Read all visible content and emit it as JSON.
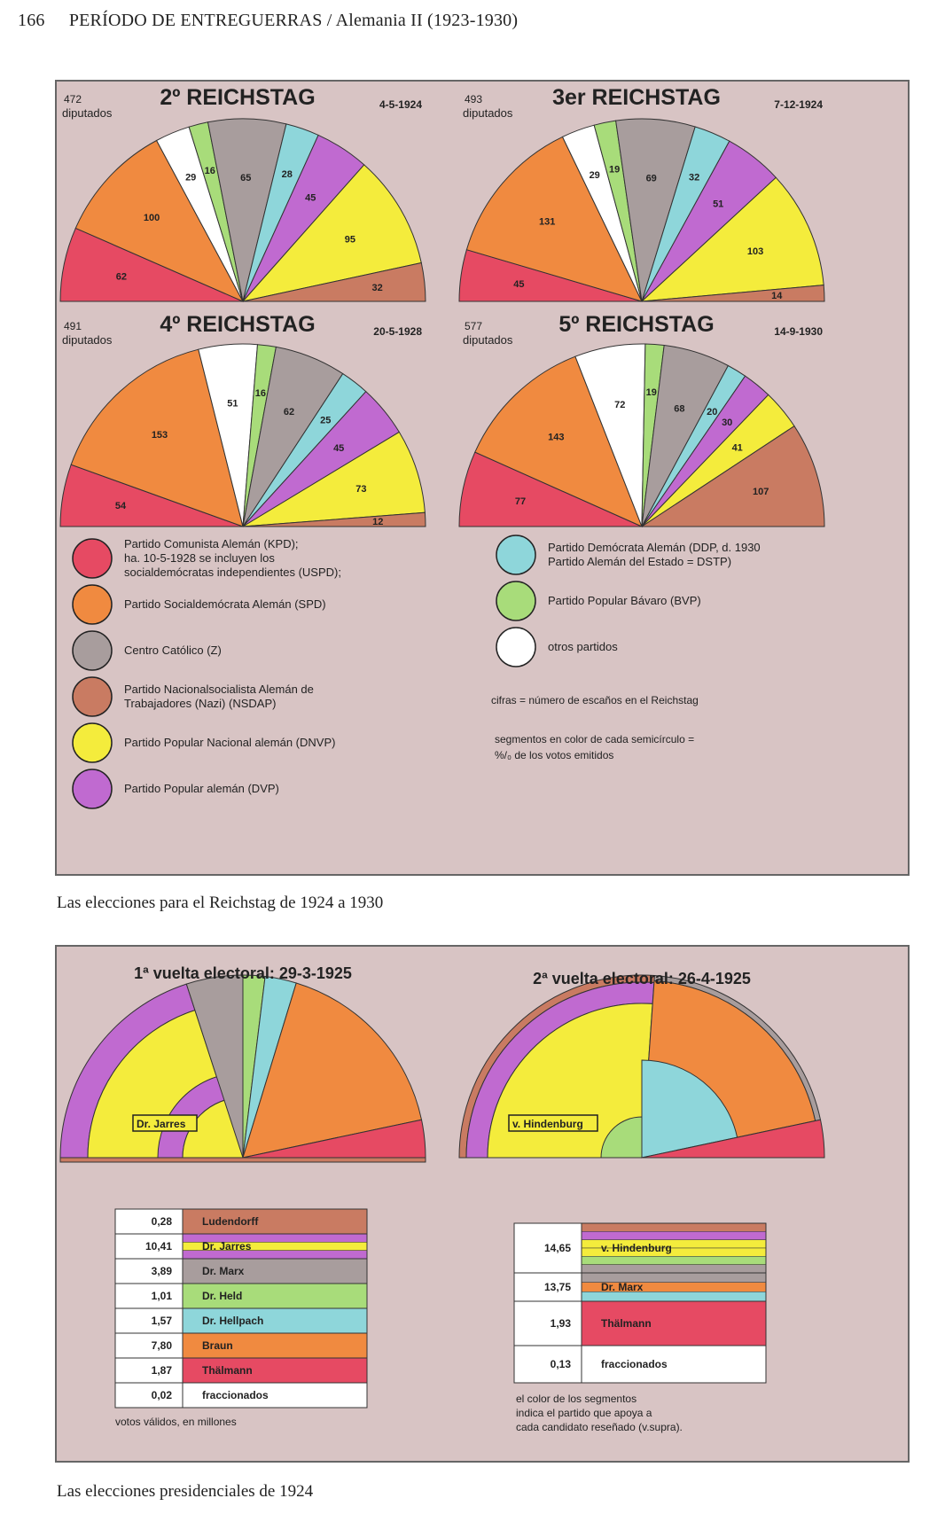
{
  "header": {
    "page_number": "166",
    "title": "PERÍODO DE ENTREGUERRAS / Alemania II (1923-1930)"
  },
  "colors": {
    "KPD": "#e64a63",
    "SPD": "#f08a40",
    "Z": "#a89d9d",
    "NSDAP": "#c97b62",
    "DNVP": "#f4ec3c",
    "DVP": "#c06ad0",
    "DDP": "#8ed6da",
    "BVP": "#a8dc7a",
    "otros": "#ffffff",
    "panel_bg": "#d8c4c4"
  },
  "reichstag": {
    "caption": "Las elecciones para el Reichstag de 1924 a 1930",
    "charts": [
      {
        "title": "2º REICHSTAG",
        "date": "4-5-1924",
        "seats": "472",
        "seats_label": "diputados",
        "segments": [
          {
            "party": "KPD",
            "value": 62
          },
          {
            "party": "SPD",
            "value": 100
          },
          {
            "party": "otros",
            "value": 29
          },
          {
            "party": "BVP",
            "value": 16
          },
          {
            "party": "Z",
            "value": 65
          },
          {
            "party": "DDP",
            "value": 28
          },
          {
            "party": "DVP",
            "value": 45
          },
          {
            "party": "DNVP",
            "value": 95
          },
          {
            "party": "NSDAP",
            "value": 32
          }
        ]
      },
      {
        "title": "3er REICHSTAG",
        "date": "7-12-1924",
        "seats": "493",
        "seats_label": "diputados",
        "segments": [
          {
            "party": "KPD",
            "value": 45
          },
          {
            "party": "SPD",
            "value": 131
          },
          {
            "party": "otros",
            "value": 29
          },
          {
            "party": "BVP",
            "value": 19
          },
          {
            "party": "Z",
            "value": 69
          },
          {
            "party": "DDP",
            "value": 32
          },
          {
            "party": "DVP",
            "value": 51
          },
          {
            "party": "DNVP",
            "value": 103
          },
          {
            "party": "NSDAP",
            "value": 14
          }
        ]
      },
      {
        "title": "4º REICHSTAG",
        "date": "20-5-1928",
        "seats": "491",
        "seats_label": "diputados",
        "segments": [
          {
            "party": "KPD",
            "value": 54
          },
          {
            "party": "SPD",
            "value": 153
          },
          {
            "party": "otros",
            "value": 51
          },
          {
            "party": "BVP",
            "value": 16
          },
          {
            "party": "Z",
            "value": 62
          },
          {
            "party": "DDP",
            "value": 25
          },
          {
            "party": "DVP",
            "value": 45
          },
          {
            "party": "DNVP",
            "value": 73
          },
          {
            "party": "NSDAP",
            "value": 12
          }
        ]
      },
      {
        "title": "5º REICHSTAG",
        "date": "14-9-1930",
        "seats": "577",
        "seats_label": "diputados",
        "segments": [
          {
            "party": "KPD",
            "value": 77
          },
          {
            "party": "SPD",
            "value": 143
          },
          {
            "party": "otros",
            "value": 72
          },
          {
            "party": "BVP",
            "value": 19
          },
          {
            "party": "Z",
            "value": 68
          },
          {
            "party": "DDP",
            "value": 20
          },
          {
            "party": "DVP",
            "value": 30
          },
          {
            "party": "DNVP",
            "value": 41
          },
          {
            "party": "NSDAP",
            "value": 107
          }
        ]
      }
    ],
    "legend_left": [
      {
        "party": "KPD",
        "lines": [
          "Partido Comunista Alemán (KPD);",
          "ha. 10-5-1928 se incluyen los",
          "socialdemócratas independientes (USPD);"
        ]
      },
      {
        "party": "SPD",
        "lines": [
          "Partido Socialdemócrata Alemán (SPD)"
        ]
      },
      {
        "party": "Z",
        "lines": [
          "Centro Católico (Z)"
        ]
      },
      {
        "party": "NSDAP",
        "lines": [
          "Partido Nacionalsocialista Alemán de",
          "Trabajadores (Nazi) (NSDAP)"
        ]
      },
      {
        "party": "DNVP",
        "lines": [
          "Partido Popular Nacional alemán (DNVP)"
        ]
      },
      {
        "party": "DVP",
        "lines": [
          "Partido Popular alemán (DVP)"
        ]
      }
    ],
    "legend_right": [
      {
        "party": "DDP",
        "lines": [
          "Partido Demócrata Alemán (DDP, d. 1930",
          "Partido Alemán del Estado = DSTP)"
        ]
      },
      {
        "party": "BVP",
        "lines": [
          "Partido Popular Bávaro (BVP)"
        ]
      },
      {
        "party": "otros",
        "lines": [
          "otros partidos"
        ]
      }
    ],
    "notes": [
      "cifras = número de escaños en el Reichstag",
      "segmentos en color de cada semicírculo =",
      "%/₀ de los votos emitidos"
    ]
  },
  "presidential": {
    "caption": "Las elecciones presidenciales de 1924",
    "round1": {
      "title": "1ª vuelta electoral: 29-3-1925",
      "chart_label": "Dr. Jarres",
      "rows": [
        {
          "value": "0,28",
          "name": "Ludendorff",
          "colors": [
            "NSDAP"
          ]
        },
        {
          "value": "10,41",
          "name": "Dr. Jarres",
          "colors": [
            "DVP",
            "DNVP",
            "DVP"
          ]
        },
        {
          "value": "3,89",
          "name": "Dr. Marx",
          "colors": [
            "Z"
          ]
        },
        {
          "value": "1,01",
          "name": "Dr. Held",
          "colors": [
            "BVP"
          ]
        },
        {
          "value": "1,57",
          "name": "Dr. Hellpach",
          "colors": [
            "DDP"
          ]
        },
        {
          "value": "7,80",
          "name": "Braun",
          "colors": [
            "SPD"
          ]
        },
        {
          "value": "1,87",
          "name": "Thälmann",
          "colors": [
            "KPD"
          ]
        },
        {
          "value": "0,02",
          "name": "fraccionados",
          "colors": [
            "otros"
          ]
        }
      ],
      "footnote": "votos válidos, en millones"
    },
    "round2": {
      "title": "2ª vuelta electoral: 26-4-1925",
      "chart_label": "v. Hindenburg",
      "rows": [
        {
          "value": "14,65",
          "name": "v. Hindenburg",
          "colors": [
            "NSDAP",
            "DVP",
            "DNVP",
            "DNVP",
            "BVP",
            "Z"
          ]
        },
        {
          "value": "13,75",
          "name": "Dr. Marx",
          "colors": [
            "Z",
            "SPD",
            "DDP"
          ]
        },
        {
          "value": "1,93",
          "name": "Thälmann",
          "colors": [
            "KPD"
          ]
        },
        {
          "value": "0,13",
          "name": "fraccionados",
          "colors": [
            "otros"
          ]
        }
      ],
      "footnote": [
        "el color de los segmentos",
        "indica el partido que apoya a",
        "cada candidato reseñado (v.supra)."
      ]
    }
  }
}
